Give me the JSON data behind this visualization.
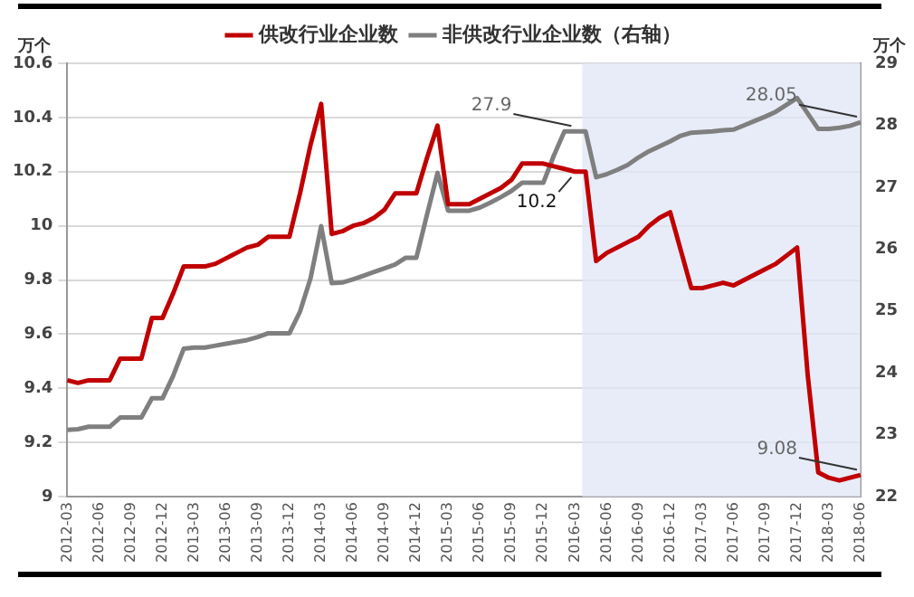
{
  "chart_data": {
    "type": "line",
    "ylabel": "万个",
    "y2label": "万个",
    "categories": [
      "2012-03",
      null,
      null,
      "2012-06",
      null,
      null,
      "2012-09",
      null,
      null,
      "2012-12",
      null,
      null,
      "2013-03",
      null,
      null,
      "2013-06",
      null,
      null,
      "2013-09",
      null,
      null,
      "2013-12",
      null,
      null,
      "2014-03",
      null,
      null,
      "2014-06",
      null,
      null,
      "2014-09",
      null,
      null,
      "2014-12",
      null,
      null,
      "2015-03",
      null,
      null,
      "2015-06",
      null,
      null,
      "2015-09",
      null,
      null,
      "2015-12",
      null,
      null,
      "2016-03",
      null,
      null,
      "2016-06",
      null,
      null,
      "2016-09",
      null,
      null,
      "2016-12",
      null,
      null,
      "2017-03",
      null,
      null,
      "2017-06",
      null,
      null,
      "2017-09",
      null,
      null,
      "2017-12",
      null,
      null,
      "2018-03",
      null,
      null,
      "2018-06"
    ],
    "series": [
      {
        "name": "供改行业企业数",
        "color": "#c00000",
        "values": [
          9.43,
          9.42,
          9.43,
          9.43,
          9.43,
          9.51,
          9.51,
          9.51,
          9.66,
          9.66,
          9.75,
          9.85,
          9.85,
          9.85,
          9.86,
          9.88,
          9.9,
          9.92,
          9.93,
          9.96,
          9.96,
          9.96,
          10.12,
          10.3,
          10.45,
          9.97,
          9.98,
          10,
          10.01,
          10.03,
          10.06,
          10.12,
          10.12,
          10.12,
          10.25,
          10.37,
          10.08,
          10.08,
          10.08,
          10.1,
          10.12,
          10.14,
          10.17,
          10.23,
          10.23,
          10.23,
          10.22,
          10.21,
          10.2,
          10.2,
          9.87,
          9.9,
          9.92,
          9.94,
          9.96,
          10,
          10.03,
          10.05,
          9.91,
          9.77,
          9.77,
          9.78,
          9.79,
          9.78,
          9.8,
          9.82,
          9.84,
          9.86,
          9.89,
          9.92,
          9.45,
          9.09,
          9.07,
          9.06,
          9.07,
          9.08
        ],
        "value_labels": [
          null,
          null,
          null,
          null,
          null,
          null,
          null,
          null,
          null,
          null,
          null,
          null,
          null,
          null,
          null,
          null,
          null,
          null,
          null,
          null,
          null,
          null,
          null,
          null,
          null,
          null,
          null,
          null,
          null,
          null,
          null,
          null,
          null,
          null,
          null,
          null,
          null,
          null,
          null,
          null,
          null,
          null,
          null,
          null,
          null,
          null,
          null,
          null,
          "10.2",
          null,
          null,
          null,
          null,
          null,
          null,
          null,
          null,
          null,
          null,
          null,
          null,
          null,
          null,
          null,
          null,
          null,
          null,
          null,
          null,
          null,
          null,
          null,
          null,
          null,
          null,
          "9.08"
        ]
      },
      {
        "name": "非供改行业企业数（右轴）",
        "color": "#7f7f7f",
        "axis": "y2",
        "values": [
          23.08,
          23.09,
          23.13,
          23.13,
          23.13,
          23.28,
          23.28,
          23.28,
          23.59,
          23.59,
          23.95,
          24.39,
          24.41,
          24.41,
          24.44,
          24.47,
          24.5,
          24.53,
          24.58,
          24.64,
          24.64,
          24.64,
          24.99,
          25.53,
          26.37,
          25.45,
          25.46,
          25.51,
          25.57,
          25.63,
          25.69,
          25.75,
          25.86,
          25.86,
          26.55,
          27.23,
          26.62,
          26.62,
          26.62,
          26.67,
          26.75,
          26.84,
          26.94,
          27.07,
          27.07,
          27.07,
          27.51,
          27.9,
          27.9,
          27.9,
          27.16,
          27.21,
          27.28,
          27.36,
          27.48,
          27.58,
          27.66,
          27.74,
          27.83,
          27.88,
          27.89,
          27.9,
          27.92,
          27.93,
          28,
          28.07,
          28.14,
          28.22,
          28.33,
          28.44,
          28.19,
          27.94,
          27.94,
          27.96,
          27.99,
          28.05
        ],
        "value_labels": [
          null,
          null,
          null,
          null,
          null,
          null,
          null,
          null,
          null,
          null,
          null,
          null,
          null,
          null,
          null,
          null,
          null,
          null,
          null,
          null,
          null,
          null,
          null,
          null,
          null,
          null,
          null,
          null,
          null,
          null,
          null,
          null,
          null,
          null,
          null,
          null,
          null,
          null,
          null,
          null,
          null,
          null,
          null,
          null,
          null,
          null,
          null,
          null,
          "27.9",
          null,
          null,
          null,
          null,
          null,
          null,
          null,
          null,
          null,
          null,
          null,
          null,
          null,
          null,
          null,
          null,
          null,
          null,
          null,
          null,
          null,
          null,
          null,
          null,
          null,
          null,
          "28.05"
        ]
      }
    ],
    "ylim": [
      9,
      10.6
    ],
    "yticks": [
      9,
      9.2,
      9.4,
      9.6,
      9.8,
      10,
      10.2,
      10.4,
      10.6
    ],
    "y2lim": [
      22,
      29
    ],
    "y2ticks": [
      22,
      23,
      24,
      25,
      26,
      27,
      28,
      29
    ],
    "bands": [
      {
        "axis": "x",
        "from": "2016-03",
        "to": "2018-06",
        "color": "#dfe6f5"
      }
    ],
    "grid": "y",
    "legend": "top",
    "marker": "none",
    "line_style": "solid"
  }
}
